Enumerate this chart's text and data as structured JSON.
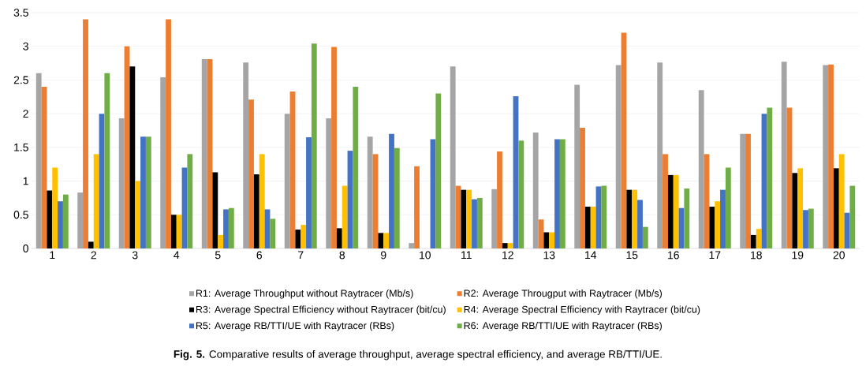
{
  "chart_data": {
    "type": "bar",
    "categories": [
      "1",
      "2",
      "3",
      "4",
      "5",
      "6",
      "7",
      "8",
      "9",
      "10",
      "11",
      "12",
      "13",
      "14",
      "15",
      "16",
      "17",
      "18",
      "19",
      "20"
    ],
    "series": [
      {
        "name": "R1: Average Throughput without Raytracer (Mb/s)",
        "color": "#a5a5a5",
        "values": [
          2.6,
          0.83,
          1.93,
          2.54,
          2.81,
          2.76,
          2.0,
          1.93,
          1.66,
          0.08,
          2.7,
          0.88,
          1.72,
          2.43,
          2.72,
          2.76,
          2.35,
          1.7,
          2.77,
          2.72
        ]
      },
      {
        "name": "R2: Average Througput with Raytracer (Mb/s)",
        "color": "#ed7d31",
        "values": [
          2.4,
          3.4,
          3.0,
          3.4,
          2.81,
          2.21,
          2.33,
          2.99,
          1.4,
          1.22,
          0.93,
          1.44,
          0.43,
          1.79,
          3.2,
          1.4,
          1.4,
          1.7,
          2.09,
          2.73
        ]
      },
      {
        "name": "R3: Average Spectral Efficiency without Raytracer (bit/cu)",
        "color": "#000000",
        "values": [
          0.86,
          0.1,
          2.7,
          0.5,
          1.13,
          1.1,
          0.28,
          0.3,
          0.23,
          0,
          0.87,
          0.08,
          0.24,
          0.62,
          0.87,
          1.09,
          0.62,
          0.2,
          1.12,
          1.19
        ]
      },
      {
        "name": "R4: Average Spectral Efficiency with Raytracer (bit/cu)",
        "color": "#ffc000",
        "values": [
          1.2,
          1.4,
          1.0,
          0.5,
          0.2,
          1.4,
          0.35,
          0.93,
          0.23,
          0,
          0.87,
          0.08,
          0.24,
          0.62,
          0.87,
          1.09,
          0.7,
          0.29,
          1.19,
          1.4
        ]
      },
      {
        "name": "R5: Average RB/TTI/UE with Raytracer (RBs)",
        "color": "#4472c4",
        "values": [
          0.7,
          2.0,
          1.66,
          1.2,
          0.58,
          0.58,
          1.65,
          1.45,
          1.7,
          1.62,
          0.73,
          2.26,
          1.62,
          0.92,
          0.72,
          0.6,
          0.87,
          2.0,
          0.57,
          0.53
        ]
      },
      {
        "name": "R6: Average RB/TTI/UE with Raytracer (RBs)",
        "color": "#70ad47",
        "values": [
          0.8,
          2.6,
          1.66,
          1.4,
          0.6,
          0.44,
          3.04,
          2.4,
          1.49,
          2.3,
          0.75,
          1.6,
          1.62,
          0.93,
          0.32,
          0.89,
          1.2,
          2.09,
          0.59,
          0.93
        ]
      }
    ],
    "ylim": [
      0,
      3.5
    ],
    "yticks": [
      0,
      0.5,
      1,
      1.5,
      2,
      2.5,
      3,
      3.5
    ],
    "grid": "y",
    "legend": "bottom",
    "annotations": [
      "**Fig. 5.** Comparative results of average throughput, average spectral efficiency, and average RB/TTI/UE."
    ]
  }
}
